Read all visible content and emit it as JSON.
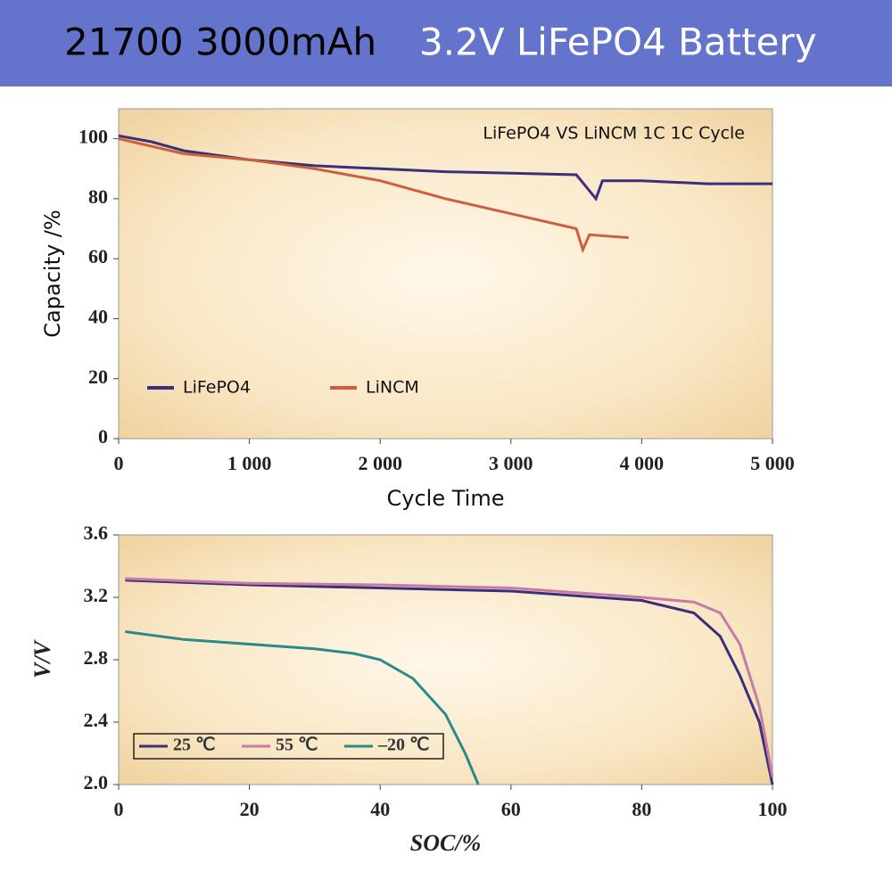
{
  "header": {
    "part_1": "21700  3000mAh",
    "part_2": "3.2V LiFePO4 Battery"
  },
  "chart_data": [
    {
      "type": "line",
      "title": "LiFePO4 VS LiNCM 1C 1C Cycle",
      "x_label": "Cycle Time",
      "y_label": "Capacity /%",
      "xlim": [
        0,
        5000
      ],
      "ylim": [
        0,
        110
      ],
      "xticks": [
        0,
        {
          "value": 1000,
          "label": "1 000"
        },
        {
          "value": 2000,
          "label": "2 000"
        },
        {
          "value": 3000,
          "label": "3 000"
        },
        {
          "value": 4000,
          "label": "4 000"
        },
        {
          "value": 5000,
          "label": "5 000"
        }
      ],
      "yticks": [
        0,
        20,
        40,
        60,
        80,
        100
      ],
      "legend": "lower left",
      "series": [
        {
          "name": "LiFePO4",
          "color": "#3b2f7c",
          "x": [
            0,
            250,
            500,
            1000,
            1500,
            2000,
            2500,
            3000,
            3500,
            3650,
            3700,
            4000,
            4500,
            5000
          ],
          "values": [
            101,
            99,
            96,
            93,
            91,
            90,
            89,
            88.5,
            88,
            80,
            86,
            86,
            85,
            85
          ]
        },
        {
          "name": "LiNCM",
          "color": "#cf5f3b",
          "x": [
            0,
            500,
            1000,
            1500,
            2000,
            2500,
            3000,
            3500,
            3550,
            3600,
            3900
          ],
          "values": [
            100,
            95,
            93,
            90,
            86,
            80,
            75,
            70,
            63,
            68,
            67
          ]
        }
      ]
    },
    {
      "type": "line",
      "x_label": "SOC/%",
      "y_label": "V/V",
      "xlim": [
        0,
        100
      ],
      "ylim": [
        2.0,
        3.6
      ],
      "xticks": [
        0,
        20,
        40,
        60,
        80,
        100
      ],
      "yticks": [
        {
          "value": 2.0,
          "label": "2.0"
        },
        2.4,
        2.8,
        3.2,
        3.6
      ],
      "legend": "lower left",
      "series": [
        {
          "name": "25 ℃",
          "color": "#3b2f7c",
          "x": [
            1,
            20,
            40,
            60,
            80,
            88,
            92,
            95,
            98,
            100
          ],
          "values": [
            3.31,
            3.28,
            3.26,
            3.24,
            3.18,
            3.1,
            2.95,
            2.7,
            2.4,
            2.0
          ]
        },
        {
          "name": "55 ℃",
          "color": "#c77aa6",
          "x": [
            1,
            20,
            40,
            60,
            80,
            88,
            92,
            95,
            98,
            100
          ],
          "values": [
            3.32,
            3.29,
            3.28,
            3.26,
            3.2,
            3.17,
            3.1,
            2.9,
            2.5,
            2.05
          ]
        },
        {
          "name": "–20 ℃",
          "color": "#2a8a8a",
          "x": [
            1,
            10,
            20,
            30,
            36,
            40,
            45,
            50,
            53,
            55
          ],
          "values": [
            2.98,
            2.93,
            2.9,
            2.87,
            2.84,
            2.8,
            2.68,
            2.45,
            2.2,
            2.0
          ]
        }
      ]
    }
  ]
}
